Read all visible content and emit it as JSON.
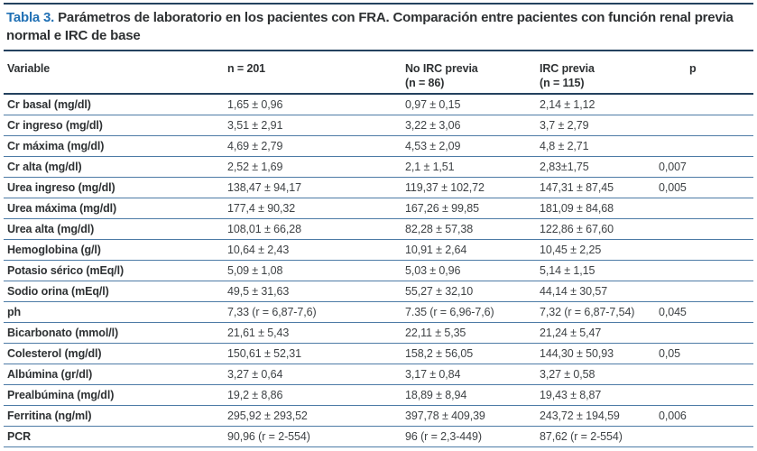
{
  "colors": {
    "accent-blue": "#2171b5",
    "rule-dark": "#24425f",
    "row-line": "#4d7ba6",
    "heading-text": "#2e3133",
    "text": "#3e4245"
  },
  "caption": {
    "label": "Tabla 3.",
    "text": "Parámetros de laboratorio en los pacientes con FRA. Comparación entre pacientes con función renal previa normal e IRC de base"
  },
  "table": {
    "columns": [
      {
        "label": "Variable",
        "sub": ""
      },
      {
        "label": "n = 201",
        "sub": ""
      },
      {
        "label": "No IRC previa",
        "sub": "(n = 86)"
      },
      {
        "label": "IRC previa",
        "sub": "(n = 115)"
      },
      {
        "label": "p",
        "sub": ""
      }
    ],
    "rows": [
      {
        "variable": "Cr basal (mg/dl)",
        "total": "1,65 ± 0,96",
        "no_irc_previa": "0,97 ± 0,15",
        "irc_previa": "2,14 ± 1,12",
        "p": ""
      },
      {
        "variable": "Cr ingreso (mg/dl)",
        "total": "3,51 ± 2,91",
        "no_irc_previa": "3,22 ± 3,06",
        "irc_previa": "3,7 ± 2,79",
        "p": ""
      },
      {
        "variable": "Cr máxima (mg/dl)",
        "total": "4,69 ± 2,79",
        "no_irc_previa": "4,53 ± 2,09",
        "irc_previa": "4,8 ± 2,71",
        "p": ""
      },
      {
        "variable": "Cr alta (mg/dl)",
        "total": "2,52 ± 1,69",
        "no_irc_previa": "2,1 ± 1,51",
        "irc_previa": "2,83±1,75",
        "p": "0,007"
      },
      {
        "variable": "Urea ingreso (mg/dl)",
        "total": "138,47 ± 94,17",
        "no_irc_previa": "119,37 ± 102,72",
        "irc_previa": "147,31 ± 87,45",
        "p": "0,005"
      },
      {
        "variable": "Urea máxima (mg/dl)",
        "total": "177,4 ± 90,32",
        "no_irc_previa": "167,26 ± 99,85",
        "irc_previa": "181,09 ± 84,68",
        "p": ""
      },
      {
        "variable": "Urea alta (mg/dl)",
        "total": "108,01 ± 66,28",
        "no_irc_previa": "82,28 ± 57,38",
        "irc_previa": "122,86 ± 67,60",
        "p": ""
      },
      {
        "variable": "Hemoglobina (g/l)",
        "total": "10,64 ± 2,43",
        "no_irc_previa": "10,91 ± 2,64",
        "irc_previa": "10,45 ± 2,25",
        "p": ""
      },
      {
        "variable": "Potasio sérico (mEq/l)",
        "total": "5,09 ± 1,08",
        "no_irc_previa": "5,03 ± 0,96",
        "irc_previa": "5,14 ± 1,15",
        "p": ""
      },
      {
        "variable": "Sodio orina (mEq/l)",
        "total": "49,5 ± 31,63",
        "no_irc_previa": "55,27 ± 32,10",
        "irc_previa": "44,14 ± 30,57",
        "p": ""
      },
      {
        "variable": "ph",
        "total": "7,33 (r = 6,87-7,6)",
        "no_irc_previa": "7.35 (r = 6,96-7,6)",
        "irc_previa": "7,32 (r = 6,87-7,54)",
        "p": "0,045"
      },
      {
        "variable": "Bicarbonato (mmol/l)",
        "total": "21,61 ± 5,43",
        "no_irc_previa": "22,11 ± 5,35",
        "irc_previa": "21,24 ± 5,47",
        "p": ""
      },
      {
        "variable": "Colesterol (mg/dl)",
        "total": "150,61 ± 52,31",
        "no_irc_previa": "158,2 ± 56,05",
        "irc_previa": "144,30 ± 50,93",
        "p": "0,05"
      },
      {
        "variable": "Albúmina (gr/dl)",
        "total": "3,27 ± 0,64",
        "no_irc_previa": "3,17 ± 0,84",
        "irc_previa": "3,27 ± 0,58",
        "p": ""
      },
      {
        "variable": "Prealbúmina (mg/dl)",
        "total": "19,2 ± 8,86",
        "no_irc_previa": "18,89 ± 8,94",
        "irc_previa": "19,43 ± 8,87",
        "p": ""
      },
      {
        "variable": "Ferritina (ng/ml)",
        "total": "295,92 ± 293,52",
        "no_irc_previa": "397,78 ± 409,39",
        "irc_previa": "243,72 ± 194,59",
        "p": "0,006"
      },
      {
        "variable": "PCR",
        "total": "90,96 (r = 2-554)",
        "no_irc_previa": "96 (r = 2,3-449)",
        "irc_previa": "87,62 (r = 2-554)",
        "p": ""
      }
    ]
  }
}
